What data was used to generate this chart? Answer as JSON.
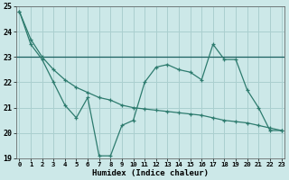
{
  "x": [
    0,
    1,
    2,
    3,
    4,
    5,
    6,
    7,
    8,
    9,
    10,
    11,
    12,
    13,
    14,
    15,
    16,
    17,
    18,
    19,
    20,
    21,
    22,
    23
  ],
  "line1": [
    24.8,
    23.5,
    22.9,
    22.0,
    21.1,
    20.6,
    21.4,
    19.1,
    19.1,
    20.3,
    20.5,
    22.0,
    22.6,
    22.7,
    22.5,
    22.4,
    22.1,
    23.5,
    22.9,
    22.9,
    21.7,
    21.0,
    20.1,
    20.1
  ],
  "line2": [
    24.8,
    23.7,
    23.0,
    22.5,
    22.1,
    21.8,
    21.6,
    21.4,
    21.3,
    21.1,
    21.0,
    20.95,
    20.9,
    20.85,
    20.8,
    20.75,
    20.7,
    20.6,
    20.5,
    20.45,
    20.4,
    20.3,
    20.2,
    20.1
  ],
  "hline_y": 23.0,
  "ylim": [
    19,
    25
  ],
  "xlim": [
    0,
    23
  ],
  "yticks": [
    19,
    20,
    21,
    22,
    23,
    24,
    25
  ],
  "xticks": [
    0,
    1,
    2,
    3,
    4,
    5,
    6,
    7,
    8,
    9,
    10,
    11,
    12,
    13,
    14,
    15,
    16,
    17,
    18,
    19,
    20,
    21,
    22,
    23
  ],
  "xlabel": "Humidex (Indice chaleur)",
  "line_color": "#2d7b6e",
  "bg_color": "#cce8e8",
  "grid_color": "#aacfcf",
  "hline_color": "#1a6060"
}
